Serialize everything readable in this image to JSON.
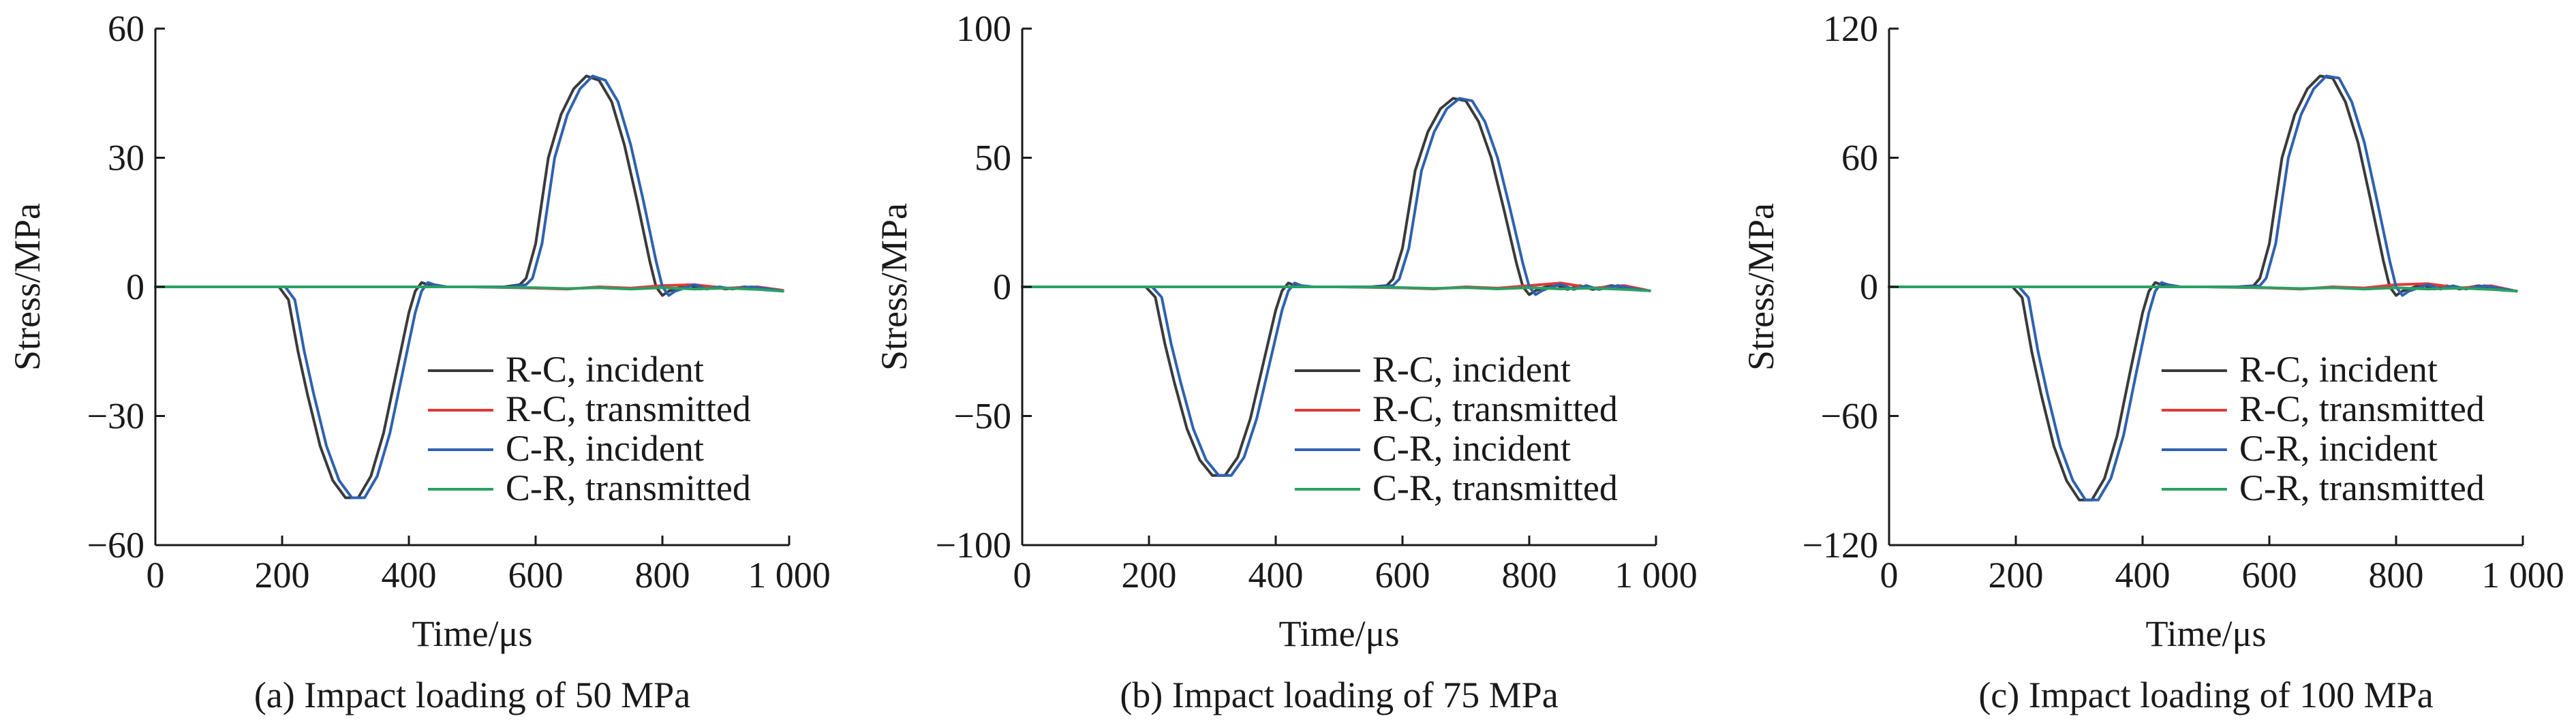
{
  "figure": {
    "xlabel": "Time/μs",
    "ylabel": "Stress/MPa"
  },
  "colors": {
    "rc_incident": "#3a3a3a",
    "rc_transmitted": "#e03a3a",
    "cr_incident": "#2e62b0",
    "cr_transmitted": "#2aa063",
    "axis": "#1a1a1a"
  },
  "chart_data": [
    {
      "type": "line",
      "caption": "(a) Impact loading of 50 MPa",
      "title": "",
      "xlabel": "Time/μs",
      "ylabel": "Stress/MPa",
      "xlim": [
        0,
        1000
      ],
      "ylim": [
        -60,
        60
      ],
      "xticks": [
        0,
        200,
        400,
        600,
        800,
        1000
      ],
      "xtick_labels": [
        "0",
        "200",
        "400",
        "600",
        "800",
        "1 000"
      ],
      "yticks": [
        -60,
        -30,
        0,
        30,
        60
      ],
      "ytick_labels": [
        "−60",
        "−30",
        "0",
        "30",
        "60"
      ],
      "legend": "lower-right",
      "series": [
        {
          "name": "R-C, incident",
          "color_key": "rc_incident",
          "x": [
            0,
            195,
            210,
            225,
            240,
            260,
            280,
            300,
            320,
            340,
            360,
            380,
            400,
            410,
            420,
            430,
            450,
            500,
            550,
            575,
            585,
            600,
            620,
            640,
            660,
            680,
            700,
            720,
            740,
            760,
            780,
            790,
            800,
            810,
            820,
            840,
            860,
            880,
            900,
            930,
            960,
            990
          ],
          "y": [
            0,
            0,
            -3,
            -15,
            -25,
            -37,
            -45,
            -49,
            -49,
            -44,
            -34,
            -20,
            -6,
            -1,
            1,
            0.5,
            0,
            0,
            0,
            0.5,
            2,
            10,
            30,
            40,
            46,
            49,
            48,
            43,
            33,
            20,
            6,
            0,
            -2,
            -1,
            -0.5,
            0.5,
            -0.5,
            0,
            -0.5,
            0,
            -0.5,
            -1
          ]
        },
        {
          "name": "R-C, transmitted",
          "color_key": "rc_transmitted",
          "x": [
            0,
            500,
            600,
            650,
            700,
            750,
            800,
            850,
            900,
            950,
            990
          ],
          "y": [
            0,
            0,
            -0.3,
            -0.5,
            0,
            -0.3,
            0.3,
            0.5,
            -0.3,
            0,
            -0.8
          ]
        },
        {
          "name": "C-R, incident",
          "color_key": "cr_incident",
          "x": [
            0,
            205,
            220,
            235,
            250,
            270,
            290,
            310,
            330,
            350,
            370,
            390,
            410,
            420,
            430,
            440,
            460,
            510,
            560,
            585,
            595,
            610,
            630,
            650,
            670,
            690,
            710,
            730,
            750,
            770,
            790,
            800,
            810,
            820,
            830,
            850,
            870,
            890,
            910,
            940,
            970,
            990
          ],
          "y": [
            0,
            0,
            -3,
            -15,
            -25,
            -37,
            -45,
            -49,
            -49,
            -44,
            -34,
            -20,
            -6,
            -1,
            1,
            0.5,
            0,
            0,
            0,
            0.5,
            2,
            10,
            30,
            40,
            46,
            49,
            48,
            43,
            33,
            20,
            6,
            0,
            -2,
            -1,
            -0.5,
            0.5,
            -0.5,
            0,
            -0.5,
            0,
            -0.5,
            -1
          ]
        },
        {
          "name": "C-R, transmitted",
          "color_key": "cr_transmitted",
          "x": [
            0,
            500,
            600,
            650,
            700,
            750,
            800,
            850,
            900,
            950,
            990
          ],
          "y": [
            0,
            0,
            -0.2,
            -0.4,
            -0.2,
            -0.5,
            -0.2,
            -0.5,
            -0.3,
            -0.6,
            -1
          ]
        }
      ]
    },
    {
      "type": "line",
      "caption": "(b) Impact loading of 75 MPa",
      "title": "",
      "xlabel": "Time/μs",
      "ylabel": "Stress/MPa",
      "xlim": [
        0,
        1000
      ],
      "ylim": [
        -100,
        100
      ],
      "xticks": [
        0,
        200,
        400,
        600,
        800,
        1000
      ],
      "xtick_labels": [
        "0",
        "200",
        "400",
        "600",
        "800",
        "1 000"
      ],
      "yticks": [
        -100,
        -50,
        0,
        50,
        100
      ],
      "ytick_labels": [
        "−100",
        "−50",
        "0",
        "50",
        "100"
      ],
      "legend": "lower-right",
      "series": [
        {
          "name": "R-C, incident",
          "color_key": "rc_incident",
          "x": [
            0,
            195,
            210,
            225,
            240,
            260,
            280,
            300,
            320,
            340,
            360,
            380,
            400,
            410,
            420,
            430,
            450,
            500,
            550,
            575,
            585,
            600,
            620,
            640,
            660,
            680,
            700,
            720,
            740,
            760,
            780,
            790,
            800,
            810,
            820,
            840,
            860,
            880,
            900,
            930,
            960,
            990
          ],
          "y": [
            0,
            0,
            -4,
            -22,
            -37,
            -55,
            -67,
            -73,
            -73,
            -66,
            -51,
            -30,
            -9,
            -1.5,
            1.5,
            0.5,
            0,
            0,
            0,
            0.5,
            3,
            15,
            45,
            60,
            69,
            73,
            72,
            64,
            50,
            30,
            9,
            0,
            -3,
            -1.5,
            -0.5,
            1,
            -1,
            0.5,
            -1,
            0.5,
            -1,
            -1.5
          ]
        },
        {
          "name": "R-C, transmitted",
          "color_key": "rc_transmitted",
          "x": [
            0,
            500,
            600,
            650,
            700,
            750,
            800,
            850,
            900,
            950,
            990
          ],
          "y": [
            0,
            0,
            -0.4,
            -0.8,
            0,
            -0.5,
            0.5,
            1.5,
            -0.5,
            0.5,
            -1.5
          ]
        },
        {
          "name": "C-R, incident",
          "color_key": "cr_incident",
          "x": [
            0,
            205,
            220,
            235,
            250,
            270,
            290,
            310,
            330,
            350,
            370,
            390,
            410,
            420,
            430,
            440,
            460,
            510,
            560,
            585,
            595,
            610,
            630,
            650,
            670,
            690,
            710,
            730,
            750,
            770,
            790,
            800,
            810,
            820,
            830,
            850,
            870,
            890,
            910,
            940,
            970,
            990
          ],
          "y": [
            0,
            0,
            -4,
            -22,
            -37,
            -55,
            -67,
            -73,
            -73,
            -66,
            -51,
            -30,
            -9,
            -1.5,
            1.5,
            0.5,
            0,
            0,
            0,
            0.5,
            3,
            15,
            45,
            60,
            69,
            73,
            72,
            64,
            50,
            30,
            9,
            0,
            -3,
            -1.5,
            -0.5,
            1,
            -1,
            0.5,
            -1,
            0.5,
            -1,
            -1.5
          ]
        },
        {
          "name": "C-R, transmitted",
          "color_key": "cr_transmitted",
          "x": [
            0,
            500,
            600,
            650,
            700,
            750,
            800,
            850,
            900,
            950,
            990
          ],
          "y": [
            0,
            0,
            -0.3,
            -0.6,
            -0.3,
            -0.8,
            -0.3,
            -0.8,
            -0.5,
            -1,
            -1.5
          ]
        }
      ]
    },
    {
      "type": "line",
      "caption": "(c) Impact loading of 100 MPa",
      "title": "",
      "xlabel": "Time/μs",
      "ylabel": "Stress/MPa",
      "xlim": [
        0,
        1000
      ],
      "ylim": [
        -120,
        120
      ],
      "xticks": [
        0,
        200,
        400,
        600,
        800,
        1000
      ],
      "xtick_labels": [
        "0",
        "200",
        "400",
        "600",
        "800",
        "1 000"
      ],
      "yticks": [
        -120,
        -60,
        0,
        60,
        120
      ],
      "ytick_labels": [
        "−120",
        "−60",
        "0",
        "60",
        "120"
      ],
      "legend": "lower-right",
      "series": [
        {
          "name": "R-C, incident",
          "color_key": "rc_incident",
          "x": [
            0,
            195,
            210,
            225,
            240,
            260,
            280,
            300,
            320,
            340,
            360,
            380,
            400,
            410,
            420,
            430,
            450,
            500,
            550,
            575,
            585,
            600,
            620,
            640,
            660,
            680,
            700,
            720,
            740,
            760,
            780,
            790,
            800,
            810,
            820,
            840,
            860,
            880,
            900,
            930,
            960,
            990
          ],
          "y": [
            0,
            0,
            -5,
            -30,
            -50,
            -74,
            -90,
            -99,
            -99,
            -89,
            -69,
            -40,
            -12,
            -2,
            2,
            1,
            0,
            0,
            0,
            0.5,
            4,
            20,
            60,
            80,
            92,
            98,
            97,
            86,
            67,
            40,
            12,
            0,
            -4,
            -2,
            -1,
            1,
            -1,
            0.5,
            -1,
            0.5,
            -1,
            -2
          ]
        },
        {
          "name": "R-C, transmitted",
          "color_key": "rc_transmitted",
          "x": [
            0,
            500,
            600,
            650,
            700,
            750,
            800,
            850,
            900,
            950,
            990
          ],
          "y": [
            0,
            0,
            -0.5,
            -1,
            0,
            -0.5,
            1,
            1.5,
            -0.5,
            0.5,
            -2
          ]
        },
        {
          "name": "C-R, incident",
          "color_key": "cr_incident",
          "x": [
            0,
            205,
            220,
            235,
            250,
            270,
            290,
            310,
            330,
            350,
            370,
            390,
            410,
            420,
            430,
            440,
            460,
            510,
            560,
            585,
            595,
            610,
            630,
            650,
            670,
            690,
            710,
            730,
            750,
            770,
            790,
            800,
            810,
            820,
            830,
            850,
            870,
            890,
            910,
            940,
            970,
            990
          ],
          "y": [
            0,
            0,
            -5,
            -30,
            -50,
            -74,
            -90,
            -99,
            -99,
            -89,
            -69,
            -40,
            -12,
            -2,
            2,
            1,
            0,
            0,
            0,
            0.5,
            4,
            20,
            60,
            80,
            92,
            98,
            97,
            86,
            67,
            40,
            12,
            0,
            -4,
            -2,
            -1,
            1,
            -1,
            0.5,
            -1,
            0.5,
            -1,
            -2
          ]
        },
        {
          "name": "C-R, transmitted",
          "color_key": "cr_transmitted",
          "x": [
            0,
            500,
            600,
            650,
            700,
            750,
            800,
            850,
            900,
            950,
            990
          ],
          "y": [
            0,
            0,
            -0.4,
            -0.8,
            -0.4,
            -1,
            -0.4,
            -1,
            -0.6,
            -1.2,
            -2
          ]
        }
      ]
    }
  ]
}
